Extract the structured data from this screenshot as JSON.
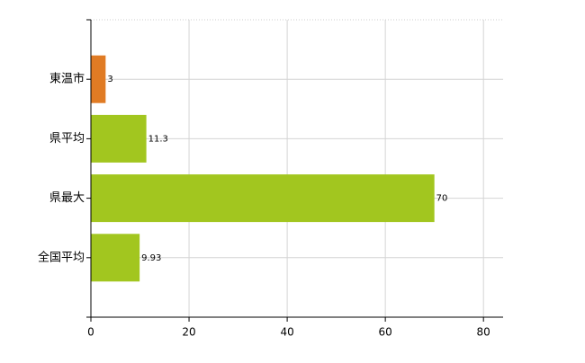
{
  "chart_data": {
    "type": "hbar",
    "categories": [
      "東温市",
      "県平均",
      "県最大",
      "全国平均"
    ],
    "values": [
      3,
      11.3,
      70,
      9.93
    ],
    "colors": [
      "#e07b24",
      "#a2c61f",
      "#a2c61f",
      "#a2c61f"
    ],
    "xlim": [
      0,
      84
    ],
    "xticks": [
      0,
      20,
      40,
      60,
      80
    ],
    "grid": true
  }
}
